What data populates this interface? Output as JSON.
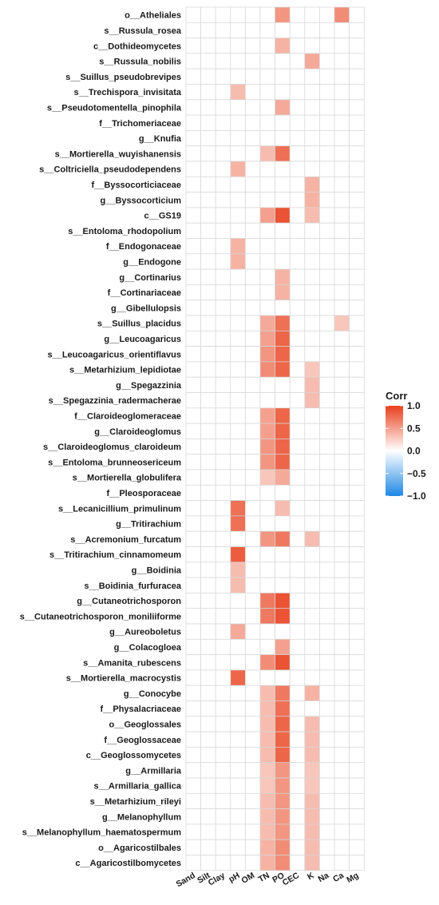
{
  "chart_data": {
    "type": "heatmap",
    "title": "",
    "legend_title": "Corr",
    "legend_ticks": [
      1.0,
      0.5,
      0.0,
      -0.5,
      -1.0
    ],
    "legend_tick_labels": [
      "1.0",
      "0.5",
      "0.0",
      "−0.5",
      "−1.0"
    ],
    "color_scale": {
      "low": "#1e88e5",
      "mid": "#ffffff",
      "high": "#e8401c",
      "domain": [
        -1,
        1
      ]
    },
    "grid": true,
    "legend_position": "right",
    "columns": [
      "Sand",
      "Silt",
      "Clay",
      "pH",
      "OM",
      "TN",
      "PO",
      "CEC",
      "K",
      "Na",
      "Ca",
      "Mg"
    ],
    "rows": [
      "o__Atheliales",
      "s__Russula_rosea",
      "c__Dothideomycetes",
      "s__Russula_nobilis",
      "s__Suillus_pseudobrevipes",
      "s__Trechispora_invisitata",
      "s__Pseudotomentella_pinophila",
      "f__Trichomeriaceae",
      "g__Knufia",
      "s__Mortierella_wuyishanensis",
      "s__Coltriciella_pseudodependens",
      "f__Byssocorticiaceae",
      "g__Byssocorticium",
      "c__GS19",
      "s__Entoloma_rhodopolium",
      "f__Endogonaceae",
      "g__Endogone",
      "g__Cortinarius",
      "f__Cortinariaceae",
      "g__Gibellulopsis",
      "s__Suillus_placidus",
      "g__Leucoagaricus",
      "s__Leucoagaricus_orientiflavus",
      "s__Metarhizium_lepidiotae",
      "g__Spegazzinia",
      "s__Spegazzinia_radermacherae",
      "f__Claroideoglomeraceae",
      "g__Claroideoglomus",
      "s__Claroideoglomus_claroideum",
      "s__Entoloma_brunneosericeum",
      "s__Mortierella_globulifera",
      "f__Pleosporaceae",
      "s__Lecanicillium_primulinum",
      "g__Tritirachium",
      "s__Acremonium_furcatum",
      "s__Tritirachium_cinnamomeum",
      "g__Boidinia",
      "s__Boidinia_furfuracea",
      "g__Cutaneotrichosporon",
      "s__Cutaneotrichosporon_moniliiforme",
      "g__Aureoboletus",
      "g__Colacogloea",
      "s__Amanita_rubescens",
      "s__Mortierella_macrocystis",
      "g__Conocybe",
      "f__Physalacriaceae",
      "o__Geoglossales",
      "f__Geoglossaceae",
      "c__Geoglossomycetes",
      "g__Armillaria",
      "s__Armillaria_gallica",
      "s__Metarhizium_rileyi",
      "g__Melanophyllum",
      "s__Melanophyllum_haematospermum",
      "o__Agaricostilbales",
      "c__Agaricostilbomycetes"
    ],
    "values": [
      [
        0,
        0,
        0,
        0,
        0,
        0,
        0.55,
        0,
        0,
        0,
        0.6,
        0
      ],
      [
        0,
        0,
        0,
        0,
        0,
        0,
        0,
        0,
        0,
        0,
        0,
        0
      ],
      [
        0,
        0,
        0,
        0,
        0,
        0,
        0.4,
        0,
        0,
        0,
        0,
        0
      ],
      [
        0,
        0,
        0,
        0,
        0,
        0,
        0,
        0,
        0.45,
        0,
        0,
        0
      ],
      [
        0,
        0,
        0,
        0,
        0,
        0,
        0,
        0,
        0,
        0,
        0,
        0
      ],
      [
        0,
        0,
        0,
        0.35,
        0,
        0,
        0,
        0,
        0,
        0,
        0,
        0
      ],
      [
        0,
        0,
        0,
        0,
        0,
        0,
        0.45,
        0,
        0,
        0,
        0,
        0
      ],
      [
        0,
        0,
        0,
        0,
        0,
        0,
        0,
        0,
        0,
        0,
        0,
        0
      ],
      [
        0,
        0,
        0,
        0,
        0,
        0,
        0,
        0,
        0,
        0,
        0,
        0
      ],
      [
        0,
        0,
        0,
        0,
        0,
        0.35,
        0.75,
        0,
        0,
        0,
        0,
        0
      ],
      [
        0,
        0,
        0,
        0.4,
        0,
        0,
        0,
        0,
        0,
        0,
        0,
        0
      ],
      [
        0,
        0,
        0,
        0,
        0,
        0,
        0,
        0,
        0.4,
        0,
        0,
        0
      ],
      [
        0,
        0,
        0,
        0,
        0,
        0,
        0,
        0,
        0.4,
        0,
        0,
        0
      ],
      [
        0,
        0,
        0,
        0,
        0,
        0.5,
        0.9,
        0,
        0.35,
        0,
        0,
        0
      ],
      [
        0,
        0,
        0,
        0,
        0,
        0,
        0,
        0,
        0,
        0,
        0,
        0
      ],
      [
        0,
        0,
        0,
        0.4,
        0,
        0,
        0,
        0,
        0,
        0,
        0,
        0
      ],
      [
        0,
        0,
        0,
        0.4,
        0,
        0,
        0,
        0,
        0,
        0,
        0,
        0
      ],
      [
        0,
        0,
        0,
        0,
        0,
        0,
        0.4,
        0,
        0,
        0,
        0,
        0
      ],
      [
        0,
        0,
        0,
        0,
        0,
        0,
        0.4,
        0,
        0,
        0,
        0,
        0
      ],
      [
        0,
        0,
        0,
        0,
        0,
        0,
        0,
        0,
        0,
        0,
        0,
        0
      ],
      [
        0,
        0,
        0,
        0,
        0,
        0.45,
        0.75,
        0,
        0,
        0,
        0.3,
        0
      ],
      [
        0,
        0,
        0,
        0,
        0,
        0.5,
        0.8,
        0,
        0,
        0,
        0,
        0
      ],
      [
        0,
        0,
        0,
        0,
        0,
        0.55,
        0.8,
        0,
        0,
        0,
        0,
        0
      ],
      [
        0,
        0,
        0,
        0,
        0,
        0.6,
        0.8,
        0,
        0.3,
        0,
        0,
        0
      ],
      [
        0,
        0,
        0,
        0,
        0,
        0,
        0,
        0,
        0.35,
        0,
        0,
        0
      ],
      [
        0,
        0,
        0,
        0,
        0,
        0,
        0,
        0,
        0.35,
        0,
        0,
        0
      ],
      [
        0,
        0,
        0,
        0,
        0,
        0.5,
        0.8,
        0,
        0,
        0,
        0,
        0
      ],
      [
        0,
        0,
        0,
        0,
        0,
        0.5,
        0.8,
        0,
        0,
        0,
        0,
        0
      ],
      [
        0,
        0,
        0,
        0,
        0,
        0.55,
        0.8,
        0,
        0,
        0,
        0,
        0
      ],
      [
        0,
        0,
        0,
        0,
        0,
        0.55,
        0.8,
        0,
        0,
        0,
        0,
        0
      ],
      [
        0,
        0,
        0,
        0,
        0,
        0.3,
        0.45,
        0,
        0,
        0,
        0,
        0
      ],
      [
        0,
        0,
        0,
        0,
        0,
        0,
        0,
        0,
        0,
        0,
        0,
        0
      ],
      [
        0,
        0,
        0,
        0.75,
        0,
        0,
        0.35,
        0,
        0,
        0,
        0,
        0
      ],
      [
        0,
        0,
        0,
        0.75,
        0,
        0,
        0,
        0,
        0,
        0,
        0,
        0
      ],
      [
        0,
        0,
        0,
        0,
        0,
        0.55,
        0.7,
        0,
        0.35,
        0,
        0,
        0
      ],
      [
        0,
        0,
        0,
        0.85,
        0,
        0,
        0,
        0,
        0,
        0,
        0,
        0
      ],
      [
        0,
        0,
        0,
        0.35,
        0,
        0,
        0,
        0,
        0,
        0,
        0,
        0
      ],
      [
        0,
        0,
        0,
        0.35,
        0,
        0,
        0,
        0,
        0,
        0,
        0,
        0
      ],
      [
        0,
        0,
        0,
        0,
        0,
        0.7,
        0.9,
        0,
        0,
        0,
        0,
        0
      ],
      [
        0,
        0,
        0,
        0,
        0,
        0.7,
        0.9,
        0,
        0,
        0,
        0,
        0
      ],
      [
        0,
        0,
        0,
        0.45,
        0,
        0,
        0,
        0,
        0,
        0,
        0,
        0
      ],
      [
        0,
        0,
        0,
        0,
        0,
        0,
        0.5,
        0,
        0,
        0,
        0,
        0
      ],
      [
        0,
        0,
        0,
        0,
        0,
        0.6,
        0.9,
        0,
        0,
        0,
        0,
        0
      ],
      [
        0,
        0,
        0,
        0.8,
        0,
        0,
        0,
        0,
        0,
        0,
        0,
        0
      ],
      [
        0,
        0,
        0,
        0,
        0,
        0.35,
        0.7,
        0,
        0.4,
        0,
        0,
        0
      ],
      [
        0,
        0,
        0,
        0,
        0,
        0.35,
        0.75,
        0,
        0,
        0,
        0,
        0
      ],
      [
        0,
        0,
        0,
        0,
        0,
        0.35,
        0.8,
        0,
        0.35,
        0,
        0,
        0
      ],
      [
        0,
        0,
        0,
        0,
        0,
        0.35,
        0.8,
        0,
        0.35,
        0,
        0,
        0
      ],
      [
        0,
        0,
        0,
        0,
        0,
        0.35,
        0.8,
        0,
        0.35,
        0,
        0,
        0
      ],
      [
        0,
        0,
        0,
        0,
        0,
        0.3,
        0.55,
        0,
        0.3,
        0,
        0,
        0
      ],
      [
        0,
        0,
        0,
        0,
        0,
        0.3,
        0.55,
        0,
        0.3,
        0,
        0,
        0
      ],
      [
        0,
        0,
        0,
        0,
        0,
        0.35,
        0.55,
        0,
        0.35,
        0,
        0,
        0
      ],
      [
        0,
        0,
        0,
        0,
        0,
        0.35,
        0.55,
        0,
        0.35,
        0,
        0,
        0
      ],
      [
        0,
        0,
        0,
        0,
        0,
        0.35,
        0.55,
        0,
        0.35,
        0,
        0,
        0
      ],
      [
        0,
        0,
        0,
        0,
        0,
        0.4,
        0.6,
        0,
        0.35,
        0,
        0,
        0
      ],
      [
        0,
        0,
        0,
        0,
        0,
        0.4,
        0.6,
        0,
        0.35,
        0,
        0,
        0
      ]
    ]
  }
}
